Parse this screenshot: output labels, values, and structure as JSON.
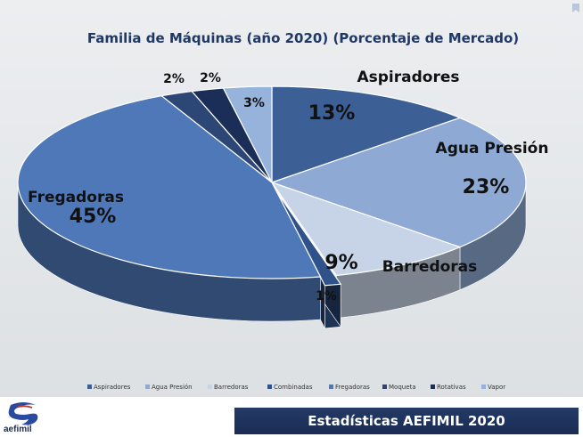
{
  "chart_data": {
    "type": "pie",
    "title": "Familia de Máquinas (año 2020) (Porcentaje  de Mercado)",
    "slices": [
      {
        "label": "Aspiradores",
        "value": 13,
        "value_label": "13%",
        "color": "#3c5f96",
        "show_label": true
      },
      {
        "label": "Agua Presión",
        "value": 23,
        "value_label": "23%",
        "color": "#8ea9d3",
        "show_label": true
      },
      {
        "label": "Barredoras",
        "value": 9,
        "value_label": "9%",
        "color": "#c7d4e7",
        "show_label": true
      },
      {
        "label": "Combinadas",
        "value": 1,
        "value_label": "1%",
        "color": "#2f528a",
        "show_label": false
      },
      {
        "label": "Fregadoras",
        "value": 45,
        "value_label": "45%",
        "color": "#4f78b8",
        "show_label": true
      },
      {
        "label": "Moqueta",
        "value": 2,
        "value_label": "2%",
        "color": "#2c4675",
        "show_label": false
      },
      {
        "label": "Rotativas",
        "value": 2,
        "value_label": "2%",
        "color": "#1a2e58",
        "show_label": false
      },
      {
        "label": "Vapor",
        "value": 3,
        "value_label": "3%",
        "color": "#96b3dc",
        "show_label": false
      }
    ],
    "legend_position": "bottom",
    "three_d": true,
    "exploded_slice": "Combinadas"
  },
  "footer": {
    "title": "Estadísticas AEFIMIL 2020",
    "logo_text": "aefimil"
  },
  "colors": {
    "title_text": "#1f3864",
    "footer_bar": "#1f3461",
    "label_text": "#111111"
  }
}
